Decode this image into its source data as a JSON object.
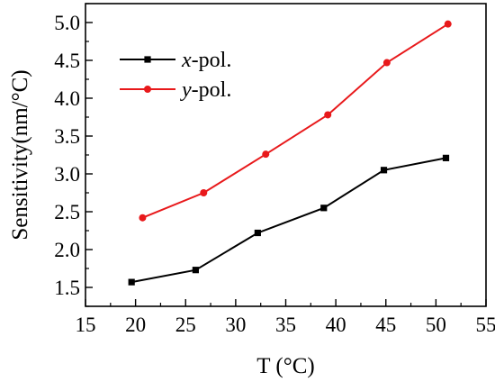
{
  "chart_data": {
    "type": "line",
    "xlabel": "T (°C)",
    "ylabel": "Sensitivity(nm/°C)",
    "xlim": [
      15,
      55
    ],
    "ylim": [
      1.25,
      5.25
    ],
    "x_ticks": [
      15,
      20,
      25,
      30,
      35,
      40,
      45,
      50,
      55
    ],
    "x_tick_labels": [
      "15",
      "20",
      "25",
      "30",
      "35",
      "40",
      "45",
      "50",
      "55"
    ],
    "y_ticks": [
      1.5,
      2.0,
      2.5,
      3.0,
      3.5,
      4.0,
      4.5,
      5.0
    ],
    "y_tick_labels": [
      "1.5",
      "2.0",
      "2.5",
      "3.0",
      "3.5",
      "4.0",
      "4.5",
      "5.0"
    ],
    "grid": false,
    "legend_position": "top-left",
    "series": [
      {
        "name_var": "x",
        "name_suffix": "-pol.",
        "color": "#000000",
        "marker": "square",
        "x": [
          19.6,
          26.0,
          32.2,
          38.8,
          44.8,
          51.0
        ],
        "y": [
          1.57,
          1.73,
          2.22,
          2.55,
          3.05,
          3.21
        ]
      },
      {
        "name_var": "y",
        "name_suffix": "-pol.",
        "color": "#e8191b",
        "marker": "circle",
        "x": [
          20.7,
          26.8,
          33.0,
          39.2,
          45.1,
          51.2
        ],
        "y": [
          2.42,
          2.75,
          3.26,
          3.78,
          4.47,
          4.98
        ]
      }
    ]
  }
}
